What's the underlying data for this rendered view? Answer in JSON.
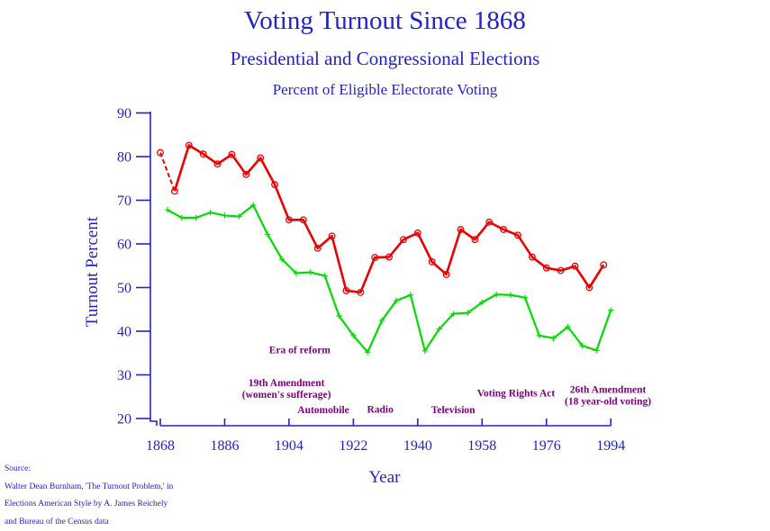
{
  "titles": {
    "main": "Voting Turnout Since 1868",
    "subtitle": "Presidential and Congressional Elections",
    "subtitle2": "Percent of Eligible Electorate Voting"
  },
  "colors": {
    "text_blue": "#2222cc",
    "axis_blue": "#2222cc",
    "annotation_purple": "#800080",
    "presidential_red": "#ee0000",
    "congressional_green": "#00dd00"
  },
  "chart_data": {
    "type": "line",
    "title": "Voting Turnout Since 1868",
    "subtitle": "Presidential and Congressional Elections",
    "subtitle2": "Percent of Eligible Electorate Voting",
    "xlabel": "Year",
    "ylabel": "Turnout Percent",
    "xlim": [
      1868,
      1994
    ],
    "ylim": [
      20,
      90
    ],
    "x_ticks": [
      1868,
      1886,
      1904,
      1922,
      1940,
      1958,
      1976,
      1994
    ],
    "y_ticks": [
      90,
      80,
      70,
      60,
      50,
      40,
      30,
      20
    ],
    "grid": false,
    "legend": "none",
    "series": [
      {
        "name": "presidential-elections",
        "color": "#ee0000",
        "marker": "circle",
        "first_segment_dashed": true,
        "points": [
          [
            1868,
            80.9
          ],
          [
            1872,
            72.1
          ],
          [
            1876,
            82.6
          ],
          [
            1880,
            80.6
          ],
          [
            1884,
            78.3
          ],
          [
            1888,
            80.5
          ],
          [
            1892,
            75.9
          ],
          [
            1896,
            79.7
          ],
          [
            1900,
            73.6
          ],
          [
            1904,
            65.5
          ],
          [
            1908,
            65.5
          ],
          [
            1912,
            59.0
          ],
          [
            1916,
            61.8
          ],
          [
            1920,
            49.3
          ],
          [
            1924,
            48.9
          ],
          [
            1928,
            56.9
          ],
          [
            1932,
            57.0
          ],
          [
            1936,
            61.0
          ],
          [
            1940,
            62.5
          ],
          [
            1944,
            55.9
          ],
          [
            1948,
            53.0
          ],
          [
            1952,
            63.3
          ],
          [
            1956,
            61.0
          ],
          [
            1960,
            65.0
          ],
          [
            1964,
            63.3
          ],
          [
            1968,
            62.0
          ],
          [
            1972,
            57.0
          ],
          [
            1976,
            54.5
          ],
          [
            1980,
            53.9
          ],
          [
            1984,
            54.9
          ],
          [
            1988,
            50.0
          ],
          [
            1992,
            55.2
          ]
        ]
      },
      {
        "name": "congressional-elections",
        "color": "#00dd00",
        "marker": "plus",
        "first_segment_dashed": false,
        "points": [
          [
            1870,
            67.8
          ],
          [
            1874,
            66.0
          ],
          [
            1878,
            66.0
          ],
          [
            1882,
            67.2
          ],
          [
            1886,
            66.5
          ],
          [
            1890,
            66.3
          ],
          [
            1894,
            68.9
          ],
          [
            1898,
            62.2
          ],
          [
            1902,
            56.5
          ],
          [
            1906,
            53.3
          ],
          [
            1910,
            53.5
          ],
          [
            1914,
            52.7
          ],
          [
            1918,
            43.5
          ],
          [
            1922,
            39.0
          ],
          [
            1926,
            35.2
          ],
          [
            1930,
            42.5
          ],
          [
            1934,
            47.0
          ],
          [
            1938,
            48.3
          ],
          [
            1942,
            35.5
          ],
          [
            1946,
            40.5
          ],
          [
            1950,
            44.0
          ],
          [
            1954,
            44.2
          ],
          [
            1958,
            46.6
          ],
          [
            1962,
            48.4
          ],
          [
            1966,
            48.3
          ],
          [
            1970,
            47.7
          ],
          [
            1974,
            39.0
          ],
          [
            1978,
            38.4
          ],
          [
            1982,
            41.0
          ],
          [
            1986,
            36.7
          ],
          [
            1990,
            35.6
          ],
          [
            1994,
            44.8
          ]
        ]
      }
    ],
    "annotations": [
      {
        "lines": [
          "Era of reform"
        ],
        "year": 1907.0,
        "value": 35.8
      },
      {
        "lines": [
          "19th Amendment",
          "(women's sufferage)"
        ],
        "year": 1903.3,
        "value": 28.2
      },
      {
        "lines": [
          "Automobile"
        ],
        "year": 1913.6,
        "value": 22.1
      },
      {
        "lines": [
          "Radio"
        ],
        "year": 1929.5,
        "value": 22.2
      },
      {
        "lines": [
          "Television"
        ],
        "year": 1949.9,
        "value": 22.1
      },
      {
        "lines": [
          "Voting Rights Act"
        ],
        "year": 1967.5,
        "value": 25.9
      },
      {
        "lines": [
          "26th Amendment",
          "(18 year-old voting)"
        ],
        "year": 1993.2,
        "value": 26.7
      }
    ]
  },
  "source": {
    "line1": "Source:",
    "line2": "Walter Dean Burnham, 'The Turnout Problem,' in",
    "line3": "Elections American Style by A. James Reichely",
    "line4": "and Bureau of the Census data"
  }
}
